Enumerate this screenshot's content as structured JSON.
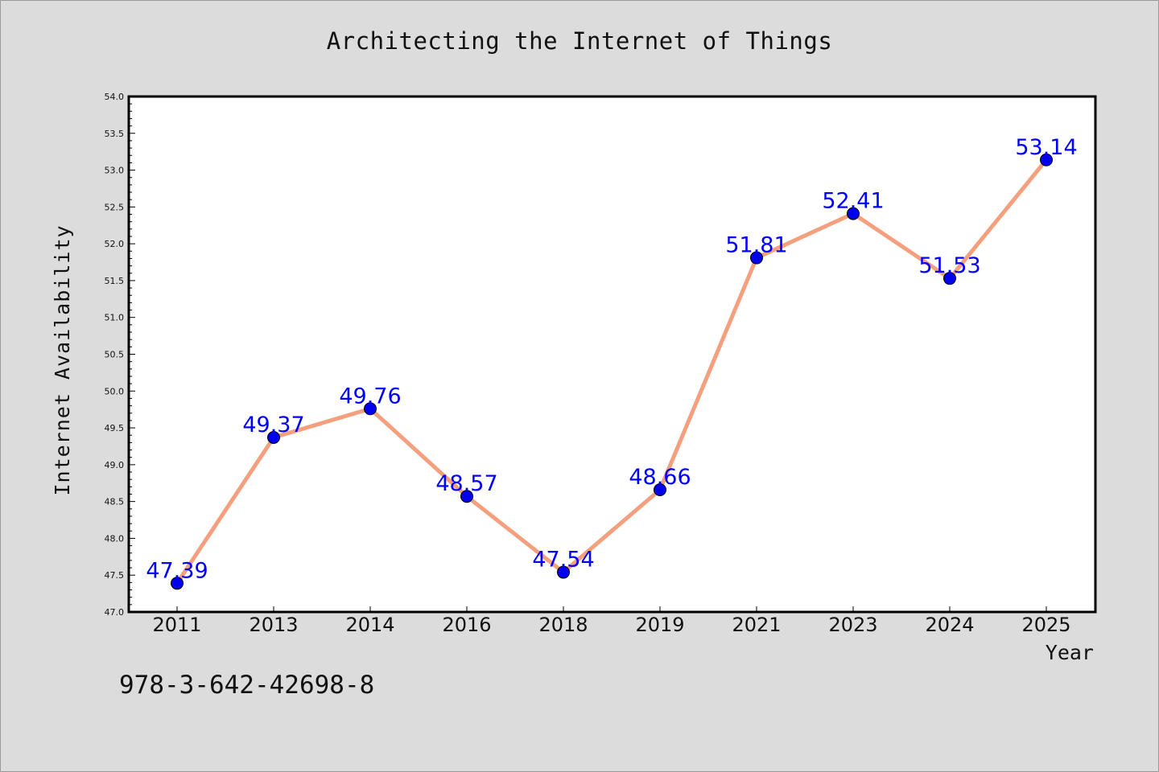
{
  "chart_data": {
    "type": "line",
    "title": "Architecting the Internet of Things",
    "xlabel": "Year",
    "ylabel": "Internet Availability",
    "categories": [
      "2011",
      "2013",
      "2014",
      "2016",
      "2018",
      "2019",
      "2021",
      "2023",
      "2024",
      "2025"
    ],
    "series": [
      {
        "values": [
          47.39,
          49.37,
          49.76,
          48.57,
          47.54,
          48.66,
          51.81,
          52.41,
          51.53,
          53.14
        ]
      }
    ],
    "data_labels": [
      "47.39",
      "49.37",
      "49.76",
      "48.57",
      "47.54",
      "48.66",
      "51.81",
      "52.41",
      "51.53",
      "53.14"
    ],
    "ylim": [
      47.0,
      54.0
    ],
    "yticks": [
      "47.0",
      "47.5",
      "48.0",
      "48.5",
      "49.0",
      "49.5",
      "50.0",
      "50.5",
      "51.0",
      "51.5",
      "52.0",
      "52.5",
      "53.0",
      "53.5",
      "54.0"
    ],
    "grid": false,
    "legend": "none",
    "colors": {
      "line": "#f4a07e",
      "marker": "#0000ee",
      "label": "#0000ff",
      "background": "#dcdcdc",
      "plot_background": "#ffffff"
    }
  },
  "footer_text": "978-3-642-42698-8"
}
